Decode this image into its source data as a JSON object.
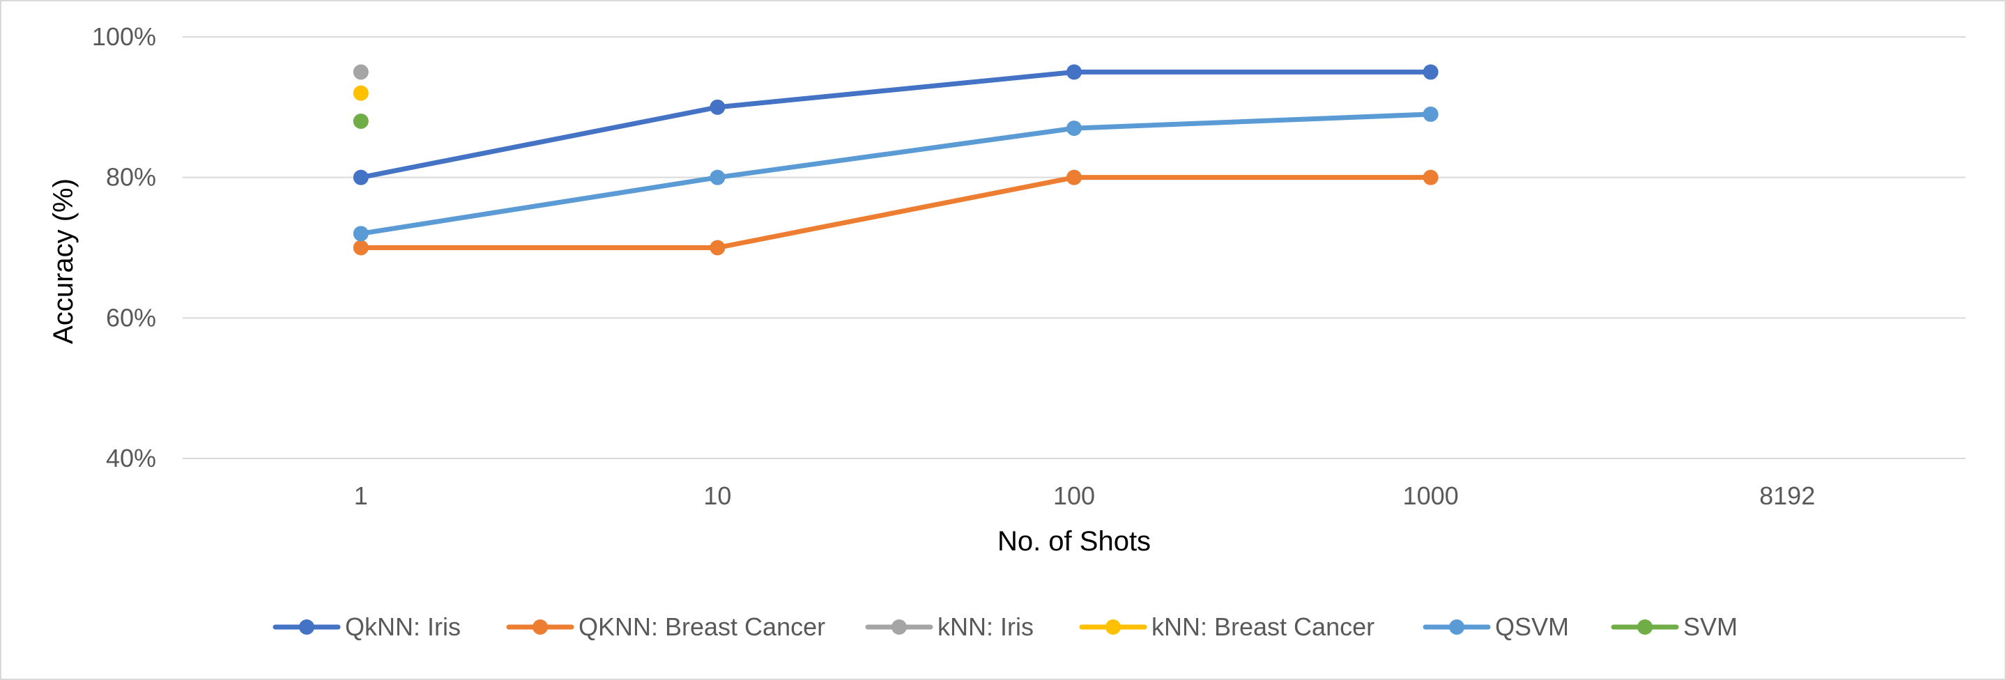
{
  "chart_data": {
    "type": "line",
    "title": "",
    "xlabel": "No. of Shots",
    "ylabel": "Accuracy (%)",
    "categories": [
      "1",
      "10",
      "100",
      "1000",
      "8192"
    ],
    "y_ticks": [
      "40%",
      "60%",
      "80%",
      "100%"
    ],
    "y_tick_values": [
      40,
      60,
      80,
      100
    ],
    "ylim": [
      40,
      100
    ],
    "grid": true,
    "legend_position": "bottom",
    "series": [
      {
        "name": "QkNN: Iris",
        "color": "#4472C4",
        "values": [
          80,
          90,
          95,
          95,
          null
        ]
      },
      {
        "name": "QKNN: Breast Cancer",
        "color": "#ED7D31",
        "values": [
          70,
          70,
          80,
          80,
          null
        ]
      },
      {
        "name": "kNN: Iris",
        "color": "#A5A5A5",
        "values": [
          95,
          null,
          null,
          null,
          null
        ]
      },
      {
        "name": "kNN: Breast Cancer",
        "color": "#FFC000",
        "values": [
          92,
          null,
          null,
          null,
          null
        ]
      },
      {
        "name": "QSVM",
        "color": "#5B9BD5",
        "values": [
          72,
          80,
          87,
          89,
          null
        ]
      },
      {
        "name": "SVM",
        "color": "#70AD47",
        "values": [
          88,
          null,
          null,
          null,
          null
        ]
      }
    ]
  }
}
